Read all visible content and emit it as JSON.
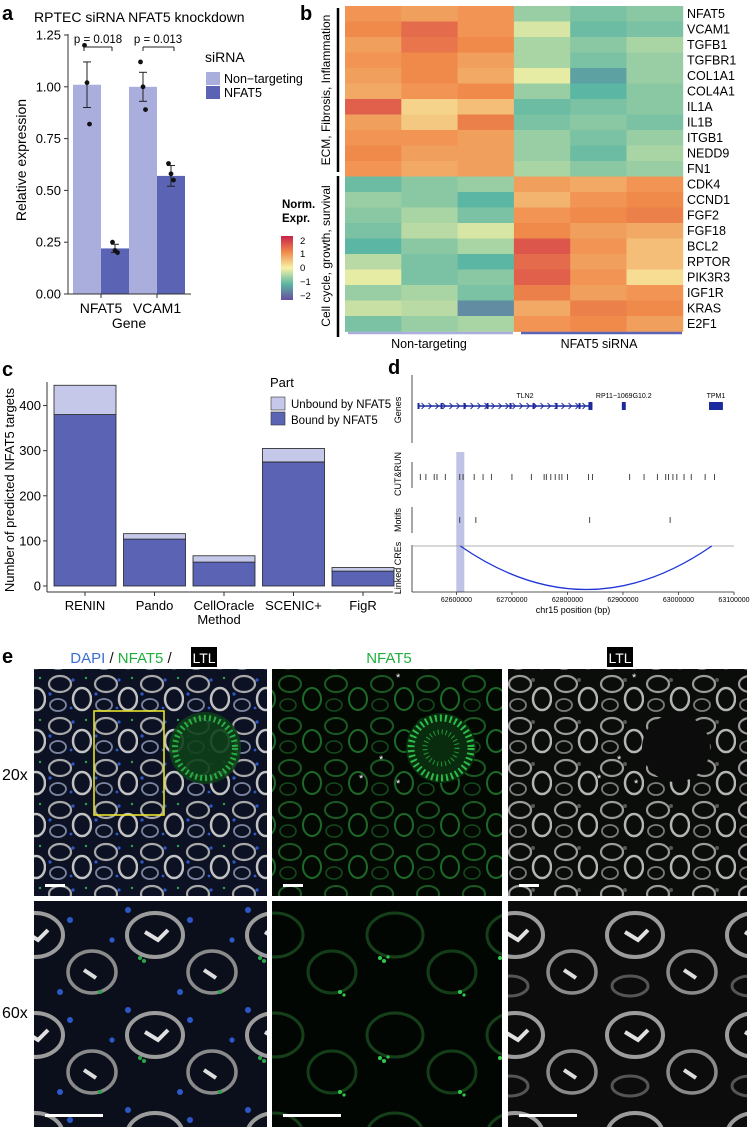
{
  "panels": {
    "a": {
      "letter": "a",
      "title": "RPTEC siRNA NFAT5 knockdown",
      "legend_title": "siRNA",
      "legend_items": [
        "Non−targeting",
        "NFAT5"
      ],
      "pvals": [
        "p = 0.018",
        "p = 0.013"
      ],
      "colors": {
        "nt": "#a9aedc",
        "kd": "#5b63b5"
      }
    },
    "b": {
      "letter": "b",
      "genes": [
        "NFAT5",
        "VCAM1",
        "TGFB1",
        "TGFBR1",
        "COL1A1",
        "COL4A1",
        "IL1A",
        "IL1B",
        "ITGB1",
        "NEDD9",
        "FN1",
        "CDK4",
        "CCND1",
        "FGF2",
        "FGF18",
        "BCL2",
        "RPTOR",
        "PIK3R3",
        "IGF1R",
        "KRAS",
        "E2F1"
      ],
      "groups": [
        "ECM, Fibrosis, Inflammation",
        "Cell cycle, growth, survival"
      ],
      "columns": [
        "Non-targeting",
        "NFAT5 siRNA"
      ],
      "legend_title": [
        "Norm.",
        "Expr."
      ],
      "legend_ticks": [
        "2",
        "1",
        "0",
        "−1",
        "−2"
      ]
    },
    "c": {
      "letter": "c",
      "legend_title": "Part",
      "legend_items": [
        "Unbound by NFAT5",
        "Bound by NFAT5"
      ],
      "colors": {
        "unbound": "#c5c8e8",
        "bound": "#5b63b5"
      }
    },
    "d": {
      "letter": "d",
      "genes": [
        "TLN2",
        "RP11−1069G10.2",
        "TPM1"
      ],
      "track_labels": [
        "Genes",
        "CUT&RUN",
        "Motifs",
        "Linked CREs"
      ],
      "xlabel": "chr15 position (bp)",
      "xticks": [
        "62600000",
        "62700000",
        "62800000",
        "62900000",
        "63000000",
        "63100000"
      ]
    },
    "e": {
      "letter": "e",
      "col_titles": {
        "dapi": "DAPI",
        "slash": " / ",
        "nfat5": "NFAT5",
        "ltl": "LTL"
      },
      "row_labels": [
        "20x",
        "60x"
      ],
      "colors": {
        "dapi": "#3b6fd4",
        "nfat5": "#1fae3c"
      }
    }
  },
  "chart_data": [
    {
      "type": "bar",
      "panel": "a",
      "categories": [
        "NFAT5",
        "VCAM1"
      ],
      "series": [
        {
          "name": "Non−targeting",
          "values": [
            1.01,
            1.0
          ],
          "err": [
            0.11,
            0.07
          ],
          "points": [
            [
              1.2,
              1.02,
              0.82
            ],
            [
              1.12,
              1.0,
              0.89
            ]
          ]
        },
        {
          "name": "NFAT5",
          "values": [
            0.22,
            0.57
          ],
          "err": [
            0.02,
            0.05
          ],
          "points": [
            [
              0.25,
              0.21,
              0.2
            ],
            [
              0.63,
              0.58,
              0.55
            ]
          ]
        }
      ],
      "xlabel": "Gene",
      "ylabel": "Relative expression",
      "ylim": [
        0,
        1.25
      ],
      "yticks": [
        0.0,
        0.25,
        0.5,
        0.75,
        1.0,
        1.25
      ],
      "ytick_labels": [
        "0.00",
        "0.25",
        "0.50",
        "0.75",
        "1.00",
        "1.25"
      ],
      "legend": "right"
    },
    {
      "type": "heatmap",
      "panel": "b",
      "rows": [
        "NFAT5",
        "VCAM1",
        "TGFB1",
        "TGFBR1",
        "COL1A1",
        "COL4A1",
        "IL1A",
        "IL1B",
        "ITGB1",
        "NEDD9",
        "FN1",
        "CDK4",
        "CCND1",
        "FGF2",
        "FGF18",
        "BCL2",
        "RPTOR",
        "PIK3R3",
        "IGF1R",
        "KRAS",
        "E2F1"
      ],
      "column_groups": [
        "Non-targeting",
        "Non-targeting",
        "Non-targeting",
        "NFAT5 siRNA",
        "NFAT5 siRNA",
        "NFAT5 siRNA"
      ],
      "values": [
        [
          0.9,
          0.8,
          0.9,
          -0.6,
          -0.8,
          -0.7
        ],
        [
          1.0,
          1.3,
          0.9,
          -0.2,
          -0.9,
          -0.8
        ],
        [
          0.8,
          1.2,
          1.0,
          -0.5,
          -0.7,
          -0.5
        ],
        [
          0.9,
          1.0,
          0.8,
          -0.5,
          -0.8,
          -0.6
        ],
        [
          0.8,
          1.0,
          0.7,
          -0.1,
          -1.2,
          -0.6
        ],
        [
          0.7,
          0.9,
          1.0,
          -0.6,
          -1.0,
          -0.7
        ],
        [
          1.4,
          0.3,
          0.5,
          -0.9,
          -0.8,
          -0.7
        ],
        [
          0.8,
          0.4,
          1.1,
          -0.8,
          -0.7,
          -0.8
        ],
        [
          0.9,
          0.9,
          0.8,
          -0.6,
          -0.8,
          -0.6
        ],
        [
          1.0,
          0.8,
          0.8,
          -0.6,
          -0.9,
          -0.5
        ],
        [
          0.9,
          0.7,
          0.8,
          -0.5,
          -0.7,
          -0.6
        ],
        [
          -0.9,
          -0.7,
          -0.6,
          0.8,
          0.7,
          0.9
        ],
        [
          -0.6,
          -0.7,
          -1.0,
          0.6,
          0.9,
          1.0
        ],
        [
          -0.7,
          -0.5,
          -0.8,
          0.9,
          1.0,
          1.1
        ],
        [
          -0.8,
          -0.4,
          -0.2,
          1.0,
          0.8,
          0.7
        ],
        [
          -1.0,
          -0.7,
          -0.5,
          1.5,
          0.9,
          0.5
        ],
        [
          -0.4,
          -0.8,
          -1.0,
          1.3,
          0.8,
          0.5
        ],
        [
          -0.1,
          -0.8,
          -0.7,
          1.4,
          0.9,
          0.2
        ],
        [
          -0.6,
          -0.5,
          -0.8,
          1.1,
          0.8,
          0.9
        ],
        [
          -0.3,
          -0.4,
          -1.4,
          0.7,
          1.1,
          1.0
        ],
        [
          -0.8,
          -0.6,
          -0.5,
          0.9,
          1.0,
          0.8
        ]
      ],
      "zlim": [
        -2,
        2
      ],
      "legend": "left"
    },
    {
      "type": "bar",
      "panel": "c",
      "stacked": true,
      "categories": [
        "RENIN",
        "Pando",
        "CellOracle",
        "SCENIC+",
        "FigR"
      ],
      "series": [
        {
          "name": "Bound by NFAT5",
          "values": [
            380,
            104,
            53,
            275,
            33
          ]
        },
        {
          "name": "Unbound by NFAT5",
          "values": [
            65,
            12,
            14,
            30,
            8
          ]
        }
      ],
      "xlabel": "Method",
      "ylabel": "Number of predicted NFAT5 targets",
      "ylim": [
        0,
        450
      ],
      "yticks": [
        0,
        100,
        200,
        300,
        400
      ],
      "legend": "top-right"
    },
    {
      "type": "scatter",
      "panel": "d",
      "xlim": [
        62520000,
        63100000
      ],
      "xticks": [
        62600000,
        62700000,
        62800000,
        62900000,
        63000000,
        63100000
      ],
      "xlabel": "chr15 position (bp)",
      "genes": [
        {
          "name": "TLN2",
          "start": 62530000,
          "end": 62845000
        },
        {
          "name": "RP11−1069G10.2",
          "start": 62898000,
          "end": 62905000
        },
        {
          "name": "TPM1",
          "start": 63055000,
          "end": 63080000
        }
      ],
      "highlight_position": 62607000,
      "cutrun_peaks": [
        62535000,
        62545000,
        62560000,
        62565000,
        62580000,
        62606000,
        62612000,
        62632000,
        62648000,
        62663000,
        62700000,
        62735000,
        62758000,
        62762000,
        62770000,
        62778000,
        62785000,
        62790000,
        62800000,
        62838000,
        62845000,
        62912000,
        62938000,
        62962000,
        62977000,
        62982000,
        62990000,
        62997000,
        63010000,
        63023000,
        63048000,
        63065000
      ],
      "motifs": [
        62606000,
        62635000,
        62840000,
        62985000
      ],
      "linked_cres": [
        {
          "from": 62607000,
          "to": 63060000
        }
      ]
    }
  ]
}
